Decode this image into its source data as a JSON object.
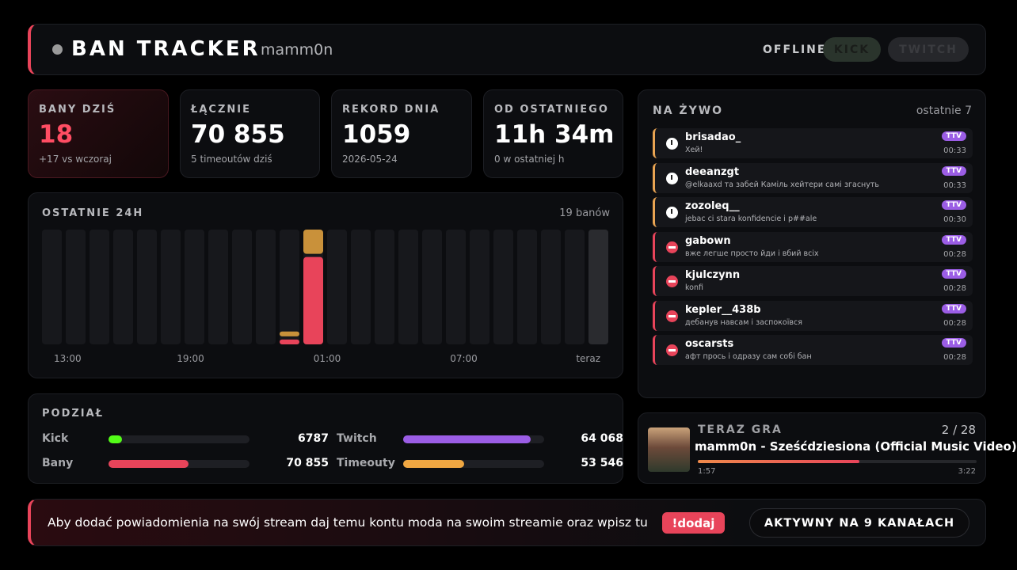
{
  "header": {
    "title": "BAN TRACKER",
    "channel": "mamm0n",
    "status": "OFFLINE",
    "buttons": [
      "KICK",
      "TWITCH"
    ]
  },
  "stats": [
    {
      "label": "BANY DZIŚ",
      "value": "18",
      "sub": "+17 vs wczoraj"
    },
    {
      "label": "ŁĄCZNIE",
      "value": "70 855",
      "sub": "5 timeoutów dziś"
    },
    {
      "label": "REKORD DNIA",
      "value": "1059",
      "sub": "2026-05-24"
    },
    {
      "label": "OD OSTATNIEGO",
      "value": "11h 34m",
      "sub": "0 w ostatniej h"
    }
  ],
  "chart_data": {
    "type": "bar",
    "title": "OSTATNIE 24H",
    "summary": "19 banów",
    "x_labels": [
      "13:00",
      "19:00",
      "01:00",
      "07:00",
      "teraz"
    ],
    "series": [
      {
        "color": "#e8445a",
        "values": [
          0,
          0,
          0,
          0,
          0,
          0,
          0,
          0,
          0,
          0,
          1,
          18,
          0,
          0,
          0,
          0,
          0,
          0,
          0,
          0,
          0,
          0,
          0,
          0
        ]
      },
      {
        "color": "#c9913a",
        "values": [
          0,
          0,
          0,
          0,
          0,
          0,
          0,
          0,
          0,
          0,
          1,
          5,
          0,
          0,
          0,
          0,
          0,
          0,
          0,
          0,
          0,
          0,
          0,
          0
        ]
      }
    ]
  },
  "breakdown": {
    "title": "PODZIAŁ",
    "pairs": [
      [
        {
          "label": "Kick",
          "value": 6787,
          "value_label": "6787",
          "color": "#53fc18"
        },
        {
          "label": "Twitch",
          "value": 64068,
          "value_label": "64 068",
          "color": "#9b5de5"
        }
      ],
      [
        {
          "label": "Bany",
          "value": 70855,
          "value_label": "70 855",
          "color": "#e8445a"
        },
        {
          "label": "Timeouty",
          "value": 53546,
          "value_label": "53 546",
          "color": "#f0a742"
        }
      ]
    ]
  },
  "live": {
    "title": "NA ŻYWO",
    "subtitle": "ostatnie 7",
    "items": [
      {
        "kind": "timeout",
        "user": "brisadao_",
        "message": "Хей!",
        "badge": "TTV",
        "time": "00:33"
      },
      {
        "kind": "timeout",
        "user": "deeanzgt",
        "message": "@elkaaxd та забей Каміль хейтери самі згаснуть",
        "badge": "TTV",
        "time": "00:33"
      },
      {
        "kind": "timeout",
        "user": "zozoleq__",
        "message": "jebac ci stara konfidencie i p##ale",
        "badge": "TTV",
        "time": "00:30"
      },
      {
        "kind": "ban",
        "user": "gabown",
        "message": "вже легше просто йди і вбий всіх",
        "badge": "TTV",
        "time": "00:28"
      },
      {
        "kind": "ban",
        "user": "kjulczynn",
        "message": "konfi",
        "badge": "TTV",
        "time": "00:28"
      },
      {
        "kind": "ban",
        "user": "kepler__438b",
        "message": "дебанув навсам і заспокоївся",
        "badge": "TTV",
        "time": "00:28"
      },
      {
        "kind": "ban",
        "user": "oscarsts",
        "message": "афт прось і одразу сам собі бан",
        "badge": "TTV",
        "time": "00:28"
      }
    ]
  },
  "now_playing": {
    "title": "TERAZ GRA",
    "position": "2 / 28",
    "song": "mamm0n - Sześćdziesiona (Official Music Video)",
    "elapsed": "1:57",
    "duration": "3:22"
  },
  "footer": {
    "text": "Aby dodać powiadomienia na swój stream daj temu kontu moda na swoim streamie oraz wpisz tu",
    "command": "!dodaj",
    "status": "AKTYWNY NA 9 KANAŁACH"
  }
}
